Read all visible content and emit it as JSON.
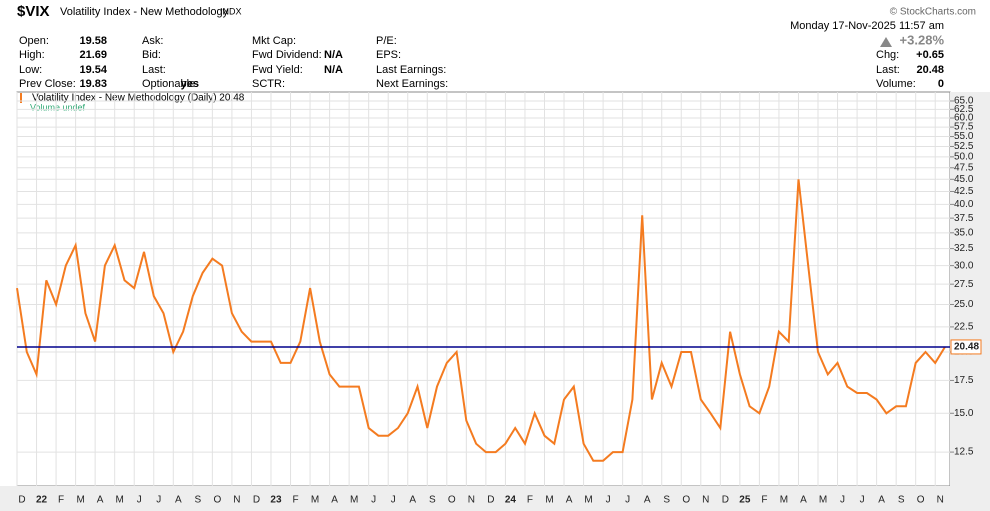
{
  "header": {
    "symbol": "$VIX",
    "name": "Volatility Index - New Methodology",
    "exchange": "INDX",
    "datetime": "Monday  17-Nov-2025  11:57 am",
    "change_pct": "+3.28%",
    "watermark": "© StockCharts.com",
    "columns": [
      [
        {
          "label": "Open:",
          "value": "19.58"
        },
        {
          "label": "High:",
          "value": "21.69"
        },
        {
          "label": "Low:",
          "value": "19.54"
        },
        {
          "label": "Prev Close:",
          "value": "19.83"
        }
      ],
      [
        {
          "label": "Ask:"
        },
        {
          "label": "Bid:"
        },
        {
          "label": "Last:"
        },
        {
          "label": "Optionable:",
          "value": "yes"
        }
      ],
      [
        {
          "label": "Mkt Cap:"
        },
        {
          "label": "Fwd Dividend:",
          "value": "N/A"
        },
        {
          "label": "Fwd Yield:",
          "value": "N/A"
        },
        {
          "label": "SCTR:"
        }
      ],
      [
        {
          "label": "P/E:"
        },
        {
          "label": "EPS:"
        },
        {
          "label": "Last Earnings:"
        },
        {
          "label": "Next Earnings:"
        }
      ],
      [
        {
          "label": "Chg:",
          "value": "+0.65"
        },
        {
          "label": "Last:",
          "value": "20.48"
        },
        {
          "label": "Volume:",
          "value": "0"
        }
      ]
    ]
  },
  "chart_data": {
    "type": "line",
    "legend": "Volatility Index - New Methodology (Daily) 20.48",
    "legend2": "Volume undef",
    "yscale": "log",
    "grid": true,
    "color": "#f47b20",
    "last_value": 20.48,
    "last_color": "#00008b",
    "ylim": [
      10.66,
      67.8
    ],
    "yticks": [
      12.5,
      {
        "value": 15,
        "label": "15.0"
      },
      17.5,
      {
        "value": 20,
        "label": "20.0"
      },
      22.5,
      {
        "value": 25,
        "label": "25.0"
      },
      27.5,
      {
        "value": 30,
        "label": "30.0"
      },
      32.5,
      {
        "value": 35,
        "label": "35.0"
      },
      37.5,
      {
        "value": 40,
        "label": "40.0"
      },
      42.5,
      {
        "value": 45,
        "label": "45.0"
      },
      47.5,
      {
        "value": 50,
        "label": "50.0"
      },
      52.5,
      {
        "value": 55,
        "label": "55.0"
      },
      57.5,
      {
        "value": 60,
        "label": "60.0"
      },
      62.5,
      {
        "value": 65,
        "label": "65.0"
      }
    ],
    "categories": [
      "D",
      null,
      "22",
      null,
      "F",
      null,
      "M",
      null,
      "A",
      null,
      "M",
      null,
      "J",
      null,
      "J",
      null,
      "A",
      null,
      "S",
      null,
      "O",
      null,
      "N",
      null,
      "D",
      null,
      "23",
      null,
      "F",
      null,
      "M",
      null,
      "A",
      null,
      "M",
      null,
      "J",
      null,
      "J",
      null,
      "A",
      null,
      "S",
      null,
      "O",
      null,
      "N",
      null,
      "D",
      null,
      "24",
      null,
      "F",
      null,
      "M",
      null,
      "A",
      null,
      "M",
      null,
      "J",
      null,
      "J",
      null,
      "A",
      null,
      "S",
      null,
      "O",
      null,
      "N",
      null,
      "D",
      null,
      "25",
      null,
      "F",
      null,
      "M",
      null,
      "A",
      null,
      "M",
      null,
      "J",
      null,
      "J",
      null,
      "A",
      null,
      "S",
      null,
      "O",
      null,
      "N",
      null
    ],
    "values": [
      27,
      20,
      18,
      28,
      25,
      30,
      33,
      24,
      21,
      30,
      33,
      28,
      27,
      32,
      26,
      24,
      20,
      22,
      26,
      29,
      31,
      30,
      24,
      22,
      21,
      21,
      21,
      19,
      19,
      21,
      27,
      21,
      18,
      17,
      17,
      17,
      14,
      13.5,
      13.5,
      14,
      15,
      17,
      14,
      17,
      19,
      20,
      14.5,
      13,
      12.5,
      12.5,
      13,
      14,
      13,
      15,
      13.5,
      13,
      16,
      17,
      13,
      12,
      12,
      12.5,
      12.5,
      16,
      38,
      16,
      19,
      17,
      20,
      20,
      16,
      15,
      14,
      22,
      18,
      15.5,
      15,
      17,
      22,
      21,
      45,
      30,
      20,
      18,
      19,
      17,
      16.5,
      16.5,
      16,
      15,
      15.5,
      15.5,
      19,
      20,
      19,
      20.48
    ]
  }
}
